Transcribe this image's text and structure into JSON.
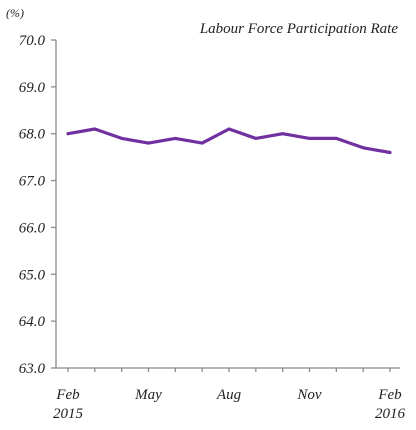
{
  "chart_data": {
    "type": "line",
    "title": "Labour Force Participation Rate",
    "unit_label": "(%)",
    "x_tick_labels": [
      {
        "index": 0,
        "lines": [
          "Feb",
          "2015"
        ]
      },
      {
        "index": 3,
        "lines": [
          "May"
        ]
      },
      {
        "index": 6,
        "lines": [
          "Aug"
        ]
      },
      {
        "index": 9,
        "lines": [
          "Nov"
        ]
      },
      {
        "index": 12,
        "lines": [
          "Feb",
          "2016"
        ]
      }
    ],
    "categories": [
      "Feb 2015",
      "Mar 2015",
      "Apr 2015",
      "May 2015",
      "Jun 2015",
      "Jul 2015",
      "Aug 2015",
      "Sep 2015",
      "Oct 2015",
      "Nov 2015",
      "Dec 2015",
      "Jan 2016",
      "Feb 2016"
    ],
    "series": [
      {
        "values": [
          68.0,
          68.1,
          67.9,
          67.8,
          67.9,
          67.8,
          68.1,
          67.9,
          68.0,
          67.9,
          67.9,
          67.7,
          67.6
        ],
        "color": "#7030a0"
      }
    ],
    "ylim": [
      63.0,
      70.0
    ],
    "y_ticks": [
      "70.0",
      "69.0",
      "68.0",
      "67.0",
      "66.0",
      "65.0",
      "64.0",
      "63.0"
    ],
    "grid": false,
    "legend": "none"
  }
}
